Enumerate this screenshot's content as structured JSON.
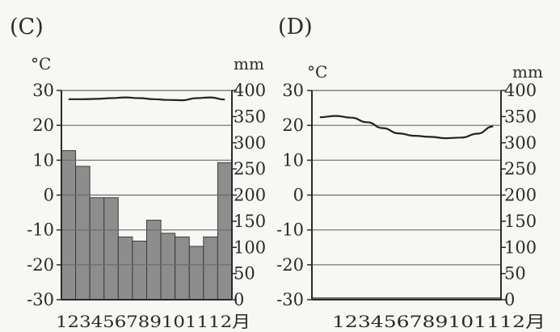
{
  "chart_data": [
    {
      "type": "bar+line",
      "panel": "(C)",
      "left_unit": "°C",
      "right_unit": "mm",
      "ylim_temp": [
        -30,
        30
      ],
      "ylim_precip": [
        0,
        400
      ],
      "left_ticks": [
        "30",
        "20",
        "10",
        "0",
        "-10",
        "-20",
        "-30"
      ],
      "right_ticks": [
        "400",
        "350",
        "300",
        "250",
        "200",
        "150",
        "100",
        "50",
        "0"
      ],
      "x_tick_label": "123456789101112月",
      "grid": true,
      "months": [
        1,
        2,
        3,
        4,
        5,
        6,
        7,
        8,
        9,
        10,
        11,
        12
      ],
      "temperature": [
        27.5,
        27.5,
        27.6,
        27.8,
        28.0,
        27.8,
        27.5,
        27.3,
        27.2,
        27.8,
        28.0,
        27.4
      ],
      "precipitation": [
        285,
        255,
        195,
        195,
        120,
        112,
        152,
        127,
        120,
        102,
        120,
        262
      ]
    },
    {
      "type": "line",
      "panel": "(D)",
      "left_unit": "°C",
      "right_unit": "mm",
      "ylim_temp": [
        -30,
        30
      ],
      "ylim_precip": [
        0,
        400
      ],
      "left_ticks": [
        "30",
        "20",
        "10",
        "0",
        "-10",
        "-20",
        "-30"
      ],
      "right_ticks": [
        "400",
        "350",
        "300",
        "250",
        "200",
        "150",
        "100",
        "50",
        "0"
      ],
      "x_tick_label": "123456789101112月",
      "grid": true,
      "months": [
        1,
        2,
        3,
        4,
        5,
        6,
        7,
        8,
        9,
        10,
        11,
        12
      ],
      "temperature": [
        22.3,
        22.7,
        22.2,
        20.9,
        19.2,
        17.7,
        17.0,
        16.7,
        16.3,
        16.5,
        17.6,
        19.7
      ],
      "precipitation": [
        2,
        2,
        2,
        2,
        2,
        2,
        2,
        2,
        2,
        2,
        2,
        2
      ]
    }
  ]
}
